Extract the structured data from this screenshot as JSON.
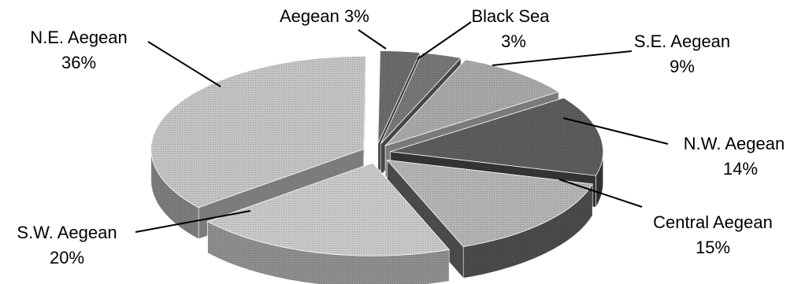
{
  "chart_data": {
    "type": "pie",
    "title": "",
    "slices": [
      {
        "label": "Aegean",
        "value": 3,
        "text": "3%"
      },
      {
        "label": "Black Sea",
        "value": 3,
        "text": "3%"
      },
      {
        "label": "S.E. Aegean",
        "value": 9,
        "text": "9%"
      },
      {
        "label": "N.W. Aegean",
        "value": 14,
        "text": "14%"
      },
      {
        "label": "Central Aegean",
        "value": 15,
        "text": "15%"
      },
      {
        "label": "S.W. Aegean",
        "value": 20,
        "text": "20%"
      },
      {
        "label": "N.E. Aegean",
        "value": 36,
        "text": "36%"
      }
    ],
    "legend": "none",
    "style": "3d-exploded-grayscale"
  }
}
